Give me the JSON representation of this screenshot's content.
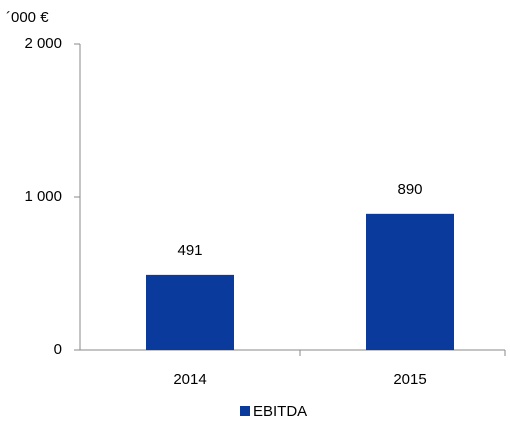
{
  "chart_data": {
    "type": "bar",
    "y_label": "´000 €",
    "categories": [
      "2014",
      "2015"
    ],
    "series": [
      {
        "name": "EBITDA",
        "color": "#0a3a9c",
        "values": [
          491,
          890
        ]
      }
    ],
    "ylim": [
      0,
      2000
    ],
    "yticks": [
      0,
      {
        "value": 1000,
        "label": "1 000"
      },
      {
        "value": 2000,
        "label": "2 000"
      }
    ],
    "legend": "bottom"
  }
}
